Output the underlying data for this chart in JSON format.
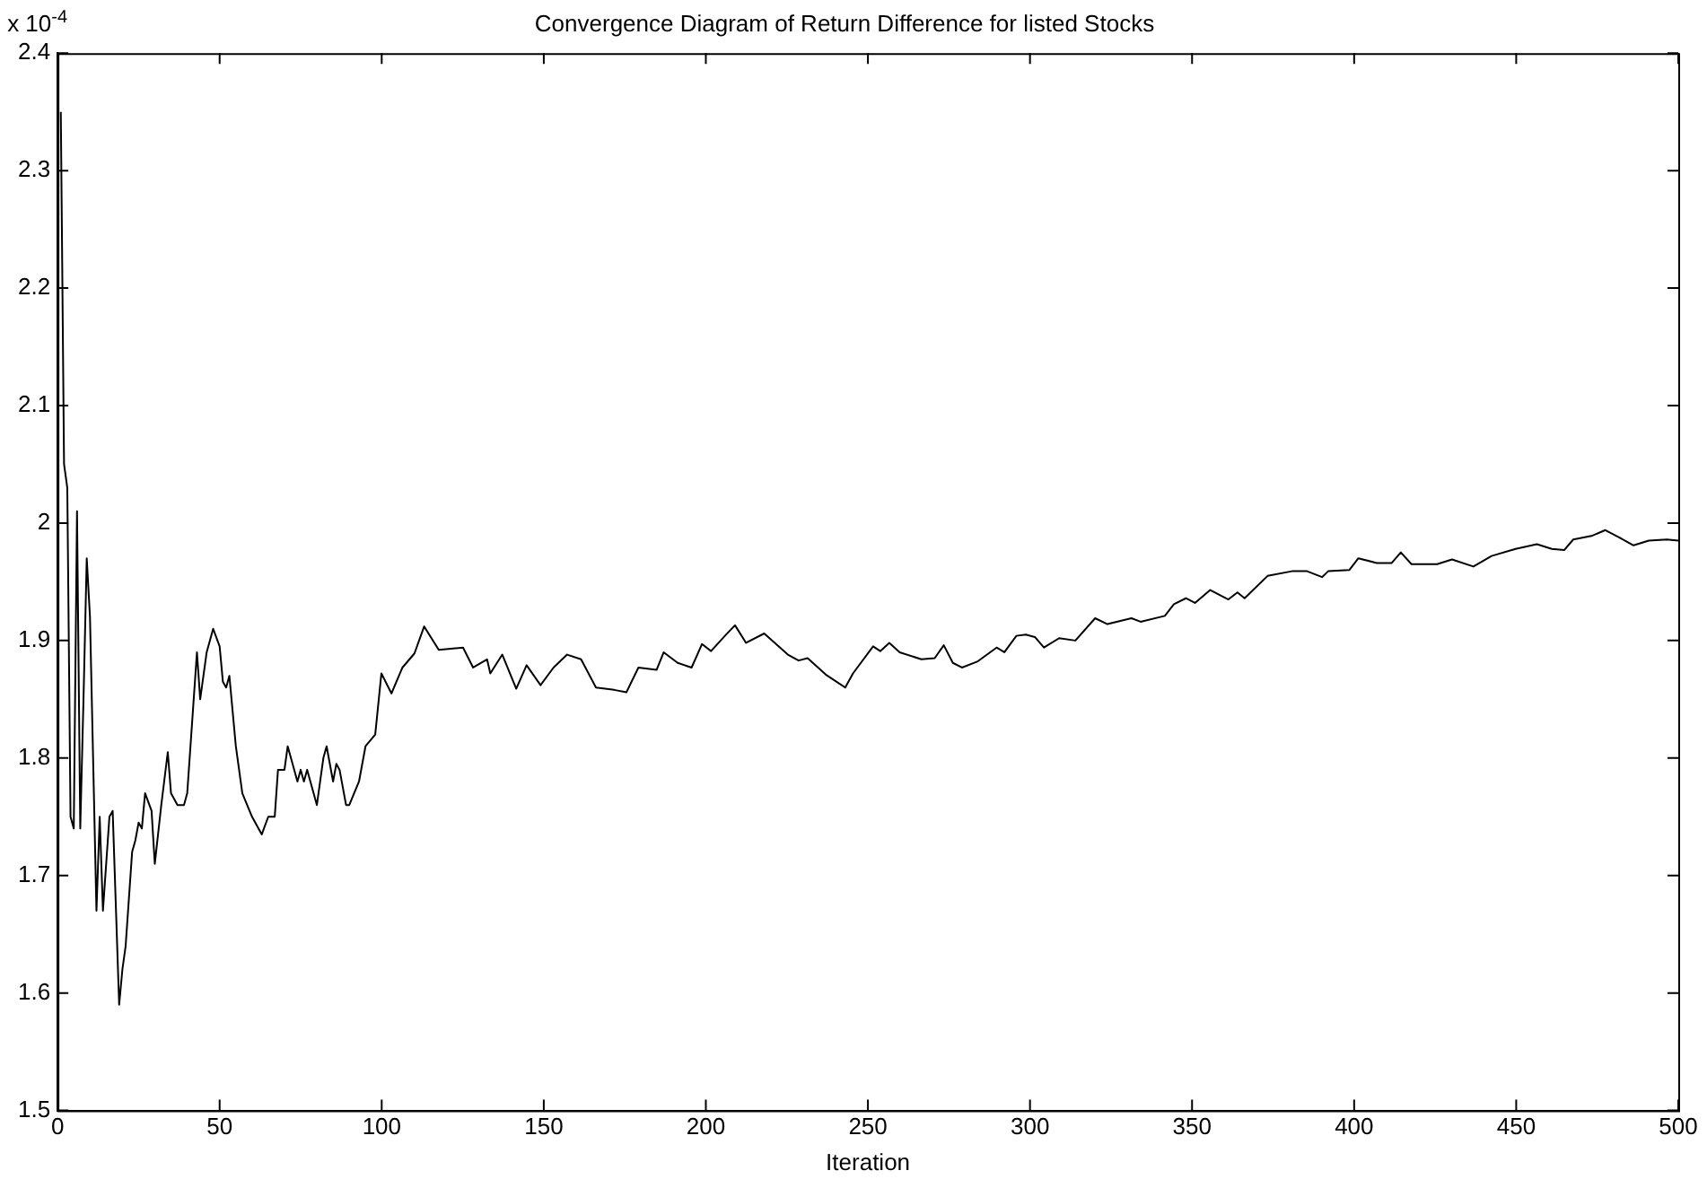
{
  "chart_data": {
    "type": "line",
    "title": "Convergence Diagram of Return Difference for listed Stocks",
    "xlabel": "Iteration",
    "annotations": [
      "x 10$^{-4}$"
    ],
    "xlim": [
      0,
      500
    ],
    "xticks": [
      0,
      50,
      100,
      150,
      200,
      250,
      300,
      350,
      400,
      450,
      500
    ],
    "ylim": [
      1.5,
      2.4
    ],
    "yticks": [
      1.5,
      1.6,
      1.7,
      1.8,
      1.9,
      2,
      2.1,
      2.2,
      2.3,
      2.4
    ],
    "grid": false,
    "legend": false,
    "marker": "none",
    "line_style": "solid",
    "series": [
      {
        "color": "#000000",
        "x": [
          1,
          2,
          3,
          4,
          5,
          6,
          7,
          8,
          9,
          10,
          12,
          13,
          14,
          16,
          17,
          19,
          20,
          21,
          23,
          24,
          25,
          26,
          27,
          29,
          30,
          32,
          34,
          35,
          37,
          39,
          40,
          42,
          43,
          44,
          46,
          48,
          50,
          51,
          52,
          53,
          55,
          57,
          60,
          63,
          65,
          67,
          68,
          70,
          71,
          72,
          74,
          75,
          76,
          77,
          80,
          82,
          83,
          85,
          86,
          87,
          89,
          90,
          93,
          95,
          98,
          99.9,
          103,
          106.4,
          110.1,
          113.1,
          117.6,
          125.1,
          128.2,
          132.5,
          133.5,
          137.2,
          141.5,
          144.7,
          149,
          153,
          157.2,
          161.5,
          166.1,
          171.7,
          175.5,
          179.2,
          184.8,
          187,
          191.3,
          195.6,
          198.8,
          201.6,
          206.2,
          209,
          212.4,
          218,
          225.3,
          228.6,
          231.4,
          237,
          243,
          245.4,
          251.6,
          253.8,
          256.6,
          259.8,
          266.5,
          270.6,
          273.4,
          276.2,
          279,
          283.7,
          289.7,
          292.1,
          295.8,
          298.7,
          301.5,
          304.3,
          309,
          314,
          320.1,
          323.9,
          331.3,
          334.1,
          341.6,
          344.4,
          348.1,
          350.9,
          355.6,
          361.2,
          364,
          366.2,
          373.3,
          380.8,
          385.5,
          390.1,
          392,
          398.5,
          401.3,
          407,
          411.6,
          414.4,
          417.7,
          425.6,
          430.2,
          436.8,
          442.4,
          449.8,
          456.4,
          461,
          464.8,
          467.6,
          473.2,
          477.5,
          481.6,
          486.2,
          490.9,
          496.5,
          500
        ],
        "values": [
          2.35,
          2.05,
          2.03,
          1.75,
          1.74,
          2.01,
          1.74,
          1.85,
          1.97,
          1.92,
          1.67,
          1.75,
          1.67,
          1.75,
          1.755,
          1.59,
          1.62,
          1.64,
          1.72,
          1.73,
          1.745,
          1.74,
          1.77,
          1.755,
          1.71,
          1.76,
          1.805,
          1.77,
          1.76,
          1.76,
          1.77,
          1.85,
          1.89,
          1.85,
          1.89,
          1.91,
          1.895,
          1.865,
          1.86,
          1.87,
          1.81,
          1.77,
          1.75,
          1.735,
          1.75,
          1.75,
          1.79,
          1.79,
          1.81,
          1.8,
          1.78,
          1.79,
          1.78,
          1.79,
          1.76,
          1.8,
          1.81,
          1.78,
          1.795,
          1.79,
          1.76,
          1.76,
          1.78,
          1.81,
          1.82,
          1.872,
          1.855,
          1.877,
          1.889,
          1.912,
          1.892,
          1.894,
          1.877,
          1.884,
          1.872,
          1.888,
          1.859,
          1.879,
          1.862,
          1.877,
          1.888,
          1.884,
          1.86,
          1.858,
          1.856,
          1.877,
          1.875,
          1.89,
          1.881,
          1.877,
          1.897,
          1.891,
          1.905,
          1.913,
          1.898,
          1.906,
          1.888,
          1.883,
          1.885,
          1.871,
          1.86,
          1.872,
          1.895,
          1.891,
          1.898,
          1.89,
          1.884,
          1.885,
          1.896,
          1.881,
          1.877,
          1.882,
          1.894,
          1.89,
          1.904,
          1.905,
          1.903,
          1.894,
          1.902,
          1.9,
          1.919,
          1.914,
          1.919,
          1.916,
          1.921,
          1.931,
          1.936,
          1.932,
          1.943,
          1.935,
          1.941,
          1.936,
          1.955,
          1.959,
          1.959,
          1.954,
          1.959,
          1.96,
          1.97,
          1.966,
          1.966,
          1.975,
          1.965,
          1.965,
          1.969,
          1.963,
          1.972,
          1.978,
          1.982,
          1.978,
          1.977,
          1.986,
          1.989,
          1.994,
          1.988,
          1.981,
          1.985,
          1.986,
          1.985
        ]
      }
    ]
  }
}
